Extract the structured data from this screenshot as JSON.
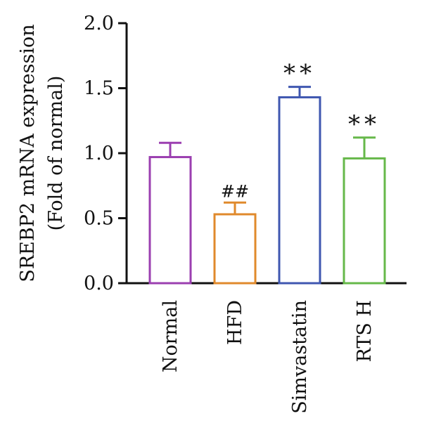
{
  "chart_data": {
    "type": "bar",
    "ylabel_line1": "SREBP2 mRNA expression",
    "ylabel_line2": "(Fold of normal)",
    "ylim": [
      0,
      2.0
    ],
    "yticks": [
      "0.0",
      "0.5",
      "1.0",
      "1.5",
      "2.0"
    ],
    "categories": [
      "Normal",
      "HFD",
      "Simvastatin",
      "RTS H"
    ],
    "values": [
      0.97,
      0.53,
      1.43,
      0.96
    ],
    "errors": [
      0.11,
      0.09,
      0.08,
      0.16
    ],
    "annotations": [
      "",
      "##",
      "**",
      "**"
    ],
    "colors": [
      "#9b3fb0",
      "#e08a2c",
      "#3f57b0",
      "#66b84a"
    ],
    "grid": false,
    "legend": "none"
  }
}
